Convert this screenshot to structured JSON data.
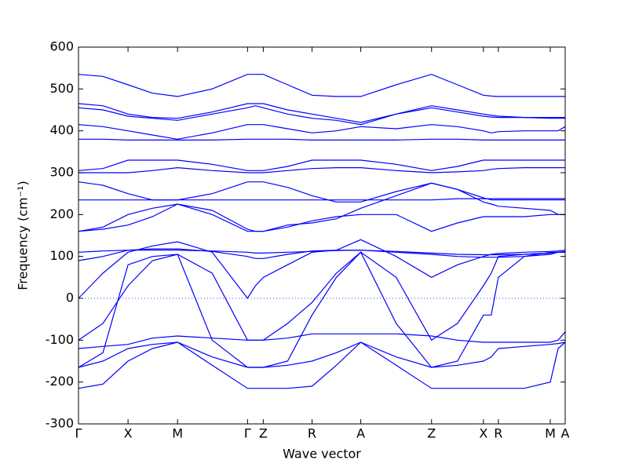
{
  "chart_data": {
    "type": "line",
    "xlabel": "Wave vector",
    "ylabel": "Frequency (cm⁻¹)",
    "color": "#0000ff",
    "hline": 0,
    "x": [
      0,
      31,
      63,
      94,
      126,
      170,
      215,
      225,
      235,
      266,
      297,
      328,
      359,
      404,
      449,
      482,
      515,
      525,
      534,
      567,
      600,
      610,
      619
    ],
    "xlim": [
      0,
      619
    ],
    "xticks": [
      {
        "value": 0,
        "label": "Γ"
      },
      {
        "value": 63,
        "label": "X"
      },
      {
        "value": 126,
        "label": "M"
      },
      {
        "value": 215,
        "label": "Γ"
      },
      {
        "value": 235,
        "label": "Z"
      },
      {
        "value": 297,
        "label": "R"
      },
      {
        "value": 359,
        "label": "A"
      },
      {
        "value": 449,
        "label": "Z"
      },
      {
        "value": 515,
        "label": "X"
      },
      {
        "value": 534,
        "label": "R"
      },
      {
        "value": 600,
        "label": "M"
      },
      {
        "value": 619,
        "label": "A"
      }
    ],
    "ylim": [
      -300,
      600
    ],
    "yticks": [
      -300,
      -200,
      -100,
      0,
      100,
      200,
      300,
      400,
      500,
      600
    ],
    "series": [
      {
        "values": [
          535,
          530,
          510,
          490,
          482,
          500,
          535,
          535,
          535,
          510,
          485,
          482,
          482,
          510,
          535,
          510,
          485,
          483,
          482,
          482,
          482,
          482,
          482
        ]
      },
      {
        "values": [
          465,
          460,
          440,
          432,
          430,
          445,
          465,
          465,
          465,
          450,
          440,
          430,
          420,
          440,
          460,
          450,
          440,
          437,
          435,
          432,
          430,
          430,
          430
        ]
      },
      {
        "values": [
          455,
          450,
          435,
          430,
          425,
          440,
          455,
          460,
          455,
          440,
          430,
          425,
          415,
          440,
          455,
          445,
          435,
          433,
          432,
          432,
          432,
          432,
          432
        ]
      },
      {
        "values": [
          415,
          410,
          400,
          390,
          380,
          395,
          415,
          415,
          415,
          405,
          395,
          400,
          410,
          405,
          415,
          410,
          400,
          395,
          398,
          400,
          400,
          400,
          410
        ]
      },
      {
        "values": [
          380,
          380,
          378,
          378,
          378,
          378,
          380,
          380,
          380,
          380,
          378,
          378,
          378,
          378,
          380,
          380,
          378,
          378,
          378,
          378,
          378,
          378,
          378
        ]
      },
      {
        "values": [
          305,
          310,
          330,
          330,
          330,
          320,
          305,
          305,
          305,
          315,
          330,
          330,
          330,
          320,
          305,
          315,
          330,
          330,
          330,
          330,
          330,
          330,
          330
        ]
      },
      {
        "values": [
          300,
          300,
          300,
          305,
          312,
          305,
          300,
          300,
          300,
          305,
          310,
          312,
          312,
          305,
          300,
          302,
          305,
          308,
          310,
          312,
          312,
          312,
          312
        ]
      },
      {
        "values": [
          278,
          270,
          250,
          235,
          235,
          250,
          278,
          278,
          278,
          265,
          245,
          230,
          230,
          255,
          275,
          260,
          240,
          235,
          235,
          235,
          235,
          235,
          235
        ]
      },
      {
        "values": [
          235,
          235,
          235,
          235,
          235,
          235,
          235,
          235,
          235,
          235,
          235,
          235,
          235,
          235,
          235,
          238,
          238,
          238,
          238,
          238,
          238,
          238,
          238
        ]
      },
      {
        "values": [
          160,
          165,
          175,
          195,
          225,
          200,
          160,
          160,
          160,
          175,
          180,
          190,
          215,
          245,
          275,
          260,
          230,
          225,
          220,
          215,
          210,
          200,
          200
        ]
      },
      {
        "values": [
          160,
          170,
          200,
          215,
          225,
          210,
          165,
          160,
          160,
          170,
          185,
          195,
          200,
          200,
          160,
          180,
          195,
          195,
          195,
          195,
          200,
          200,
          200
        ]
      },
      {
        "values": [
          110,
          113,
          115,
          115,
          115,
          113,
          110,
          108,
          108,
          110,
          112,
          114,
          115,
          112,
          108,
          105,
          104,
          104,
          104,
          105,
          108,
          110,
          112
        ]
      },
      {
        "values": [
          90,
          100,
          115,
          118,
          118,
          112,
          100,
          95,
          95,
          105,
          113,
          115,
          115,
          110,
          105,
          100,
          98,
          98,
          98,
          100,
          105,
          110,
          110
        ]
      },
      {
        "values": [
          0,
          60,
          110,
          125,
          135,
          110,
          0,
          30,
          50,
          80,
          110,
          115,
          140,
          100,
          50,
          80,
          100,
          105,
          107,
          110,
          112,
          113,
          115
        ]
      },
      {
        "values": [
          -100,
          -60,
          30,
          90,
          105,
          60,
          -100,
          -100,
          -100,
          -60,
          -10,
          60,
          110,
          50,
          -100,
          -60,
          30,
          60,
          100,
          105,
          108,
          110,
          112
        ]
      },
      {
        "values": [
          -165,
          -130,
          80,
          100,
          105,
          -100,
          -165,
          -165,
          -165,
          -150,
          -40,
          50,
          110,
          -60,
          -165,
          -150,
          -40,
          -40,
          50,
          100,
          110,
          110,
          110
        ]
      },
      {
        "values": [
          -120,
          -115,
          -110,
          -95,
          -90,
          -95,
          -100,
          -100,
          -100,
          -95,
          -85,
          -85,
          -85,
          -85,
          -90,
          -100,
          -105,
          -105,
          -105,
          -105,
          -105,
          -100,
          -80
        ]
      },
      {
        "values": [
          -215,
          -205,
          -150,
          -120,
          -105,
          -160,
          -215,
          -215,
          -215,
          -215,
          -210,
          -160,
          -105,
          -160,
          -215,
          -215,
          -215,
          -215,
          -215,
          -215,
          -200,
          -120,
          -105
        ]
      },
      {
        "values": [
          -165,
          -150,
          -120,
          -110,
          -105,
          -140,
          -165,
          -165,
          -165,
          -160,
          -150,
          -130,
          -105,
          -140,
          -165,
          -160,
          -150,
          -140,
          -120,
          -115,
          -110,
          -108,
          -105
        ]
      }
    ]
  }
}
